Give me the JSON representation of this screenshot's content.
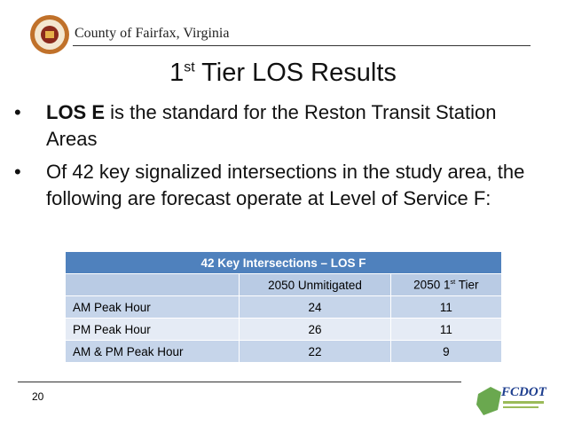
{
  "header": {
    "org": "County of Fairfax, Virginia"
  },
  "title": {
    "number": "1",
    "sup": "st",
    "rest": " Tier LOS Results"
  },
  "bullets": [
    {
      "bold": "LOS E",
      "text": " is the standard for the Reston Transit Station Areas"
    },
    {
      "text": "Of 42 key signalized intersections in the study area, the following are forecast operate at Level of Service F:"
    }
  ],
  "table": {
    "title": "42 Key Intersections – LOS F",
    "columns": [
      "",
      "2050 Unmitigated",
      {
        "number": "2050 1",
        "sup": "st",
        "rest": " Tier"
      }
    ],
    "rows": [
      [
        "AM Peak Hour",
        24,
        11
      ],
      [
        "PM Peak Hour",
        26,
        11
      ],
      [
        "AM & PM Peak Hour",
        22,
        9
      ]
    ]
  },
  "footer": {
    "page": "20",
    "logo": "FCDOT"
  }
}
